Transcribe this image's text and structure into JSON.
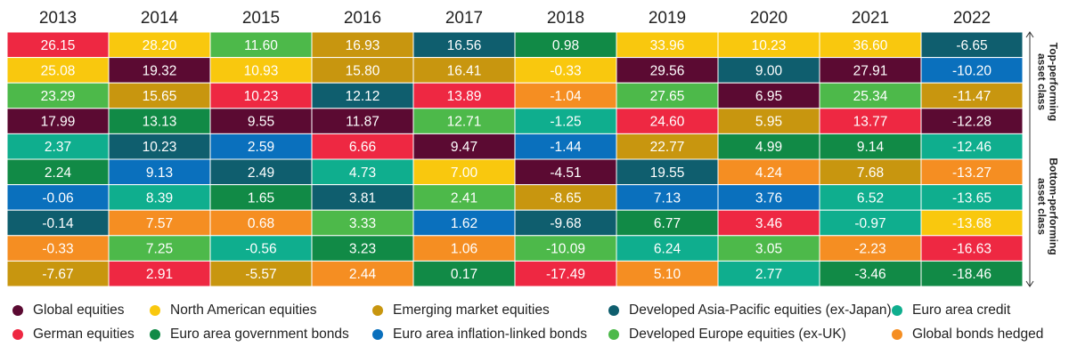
{
  "chart_data": {
    "type": "table",
    "title": "",
    "years": [
      "2013",
      "2014",
      "2015",
      "2016",
      "2017",
      "2018",
      "2019",
      "2020",
      "2021",
      "2022"
    ],
    "side_labels": {
      "top": [
        "Top-performing",
        "asset class"
      ],
      "bottom": [
        "Bottom-performing",
        "asset class"
      ]
    },
    "asset_classes": [
      {
        "key": "GE",
        "name": "Global equities",
        "color": "#5b0a32",
        "text_color": "#ffffff"
      },
      {
        "key": "NAE",
        "name": "North American equities",
        "color": "#f9c80e",
        "text_color": "#ffffff"
      },
      {
        "key": "EME",
        "name": "Emerging market equities",
        "color": "#c8960f",
        "text_color": "#ffffff"
      },
      {
        "key": "APE",
        "name": "Developed Asia-Pacific equities (ex-Japan)",
        "color": "#0f5e6e",
        "text_color": "#ffffff"
      },
      {
        "key": "EAC",
        "name": "Euro area credit",
        "color": "#0fae8e",
        "text_color": "#ffffff"
      },
      {
        "key": "GER",
        "name": "German equities",
        "color": "#ee2842",
        "text_color": "#ffffff"
      },
      {
        "key": "EAGB",
        "name": "Euro area government bonds",
        "color": "#118a46",
        "text_color": "#ffffff"
      },
      {
        "key": "EAIL",
        "name": "Euro area inflation-linked bonds",
        "color": "#0a70bd",
        "text_color": "#ffffff"
      },
      {
        "key": "DEE",
        "name": "Developed Europe equities (ex-UK)",
        "color": "#4db94a",
        "text_color": "#ffffff"
      },
      {
        "key": "GBH",
        "name": "Global bonds hedged",
        "color": "#f58e22",
        "text_color": "#ffffff"
      }
    ],
    "columns": [
      [
        [
          "GER",
          "26.15"
        ],
        [
          "NAE",
          "25.08"
        ],
        [
          "DEE",
          "23.29"
        ],
        [
          "GE",
          "17.99"
        ],
        [
          "EAC",
          "2.37"
        ],
        [
          "EAGB",
          "2.24"
        ],
        [
          "EAIL",
          "-0.06"
        ],
        [
          "APE",
          "-0.14"
        ],
        [
          "GBH",
          "-0.33"
        ],
        [
          "EME",
          "-7.67"
        ]
      ],
      [
        [
          "NAE",
          "28.20"
        ],
        [
          "GE",
          "19.32"
        ],
        [
          "EME",
          "15.65"
        ],
        [
          "EAGB",
          "13.13"
        ],
        [
          "APE",
          "10.23"
        ],
        [
          "EAIL",
          "9.13"
        ],
        [
          "EAC",
          "8.39"
        ],
        [
          "GBH",
          "7.57"
        ],
        [
          "DEE",
          "7.25"
        ],
        [
          "GER",
          "2.91"
        ]
      ],
      [
        [
          "DEE",
          "11.60"
        ],
        [
          "NAE",
          "10.93"
        ],
        [
          "GER",
          "10.23"
        ],
        [
          "GE",
          "9.55"
        ],
        [
          "EAIL",
          "2.59"
        ],
        [
          "APE",
          "2.49"
        ],
        [
          "EAGB",
          "1.65"
        ],
        [
          "GBH",
          "0.68"
        ],
        [
          "EAC",
          "-0.56"
        ],
        [
          "EME",
          "-5.57"
        ]
      ],
      [
        [
          "EME",
          "16.93"
        ],
        [
          "EME",
          "15.80"
        ],
        [
          "APE",
          "12.12"
        ],
        [
          "GE",
          "11.87"
        ],
        [
          "GER",
          "6.66"
        ],
        [
          "EAC",
          "4.73"
        ],
        [
          "APE",
          "3.81"
        ],
        [
          "DEE",
          "3.33"
        ],
        [
          "EAGB",
          "3.23"
        ],
        [
          "GBH",
          "2.44"
        ]
      ],
      [
        [
          "APE",
          "16.56"
        ],
        [
          "EME",
          "16.41"
        ],
        [
          "GER",
          "13.89"
        ],
        [
          "DEE",
          "12.71"
        ],
        [
          "GE",
          "9.47"
        ],
        [
          "NAE",
          "7.00"
        ],
        [
          "DEE",
          "2.41"
        ],
        [
          "EAIL",
          "1.62"
        ],
        [
          "GBH",
          "1.06"
        ],
        [
          "EAGB",
          "0.17"
        ]
      ],
      [
        [
          "EAGB",
          "0.98"
        ],
        [
          "NAE",
          "-0.33"
        ],
        [
          "GBH",
          "-1.04"
        ],
        [
          "EAC",
          "-1.25"
        ],
        [
          "EAIL",
          "-1.44"
        ],
        [
          "GE",
          "-4.51"
        ],
        [
          "EME",
          "-8.65"
        ],
        [
          "APE",
          "-9.68"
        ],
        [
          "DEE",
          "-10.09"
        ],
        [
          "GER",
          "-17.49"
        ]
      ],
      [
        [
          "NAE",
          "33.96"
        ],
        [
          "GE",
          "29.56"
        ],
        [
          "DEE",
          "27.65"
        ],
        [
          "GER",
          "24.60"
        ],
        [
          "EME",
          "22.77"
        ],
        [
          "APE",
          "19.55"
        ],
        [
          "EAIL",
          "7.13"
        ],
        [
          "EAGB",
          "6.77"
        ],
        [
          "EAC",
          "6.24"
        ],
        [
          "GBH",
          "5.10"
        ]
      ],
      [
        [
          "NAE",
          "10.23"
        ],
        [
          "APE",
          "9.00"
        ],
        [
          "GE",
          "6.95"
        ],
        [
          "EME",
          "5.95"
        ],
        [
          "EAGB",
          "4.99"
        ],
        [
          "GBH",
          "4.24"
        ],
        [
          "EAIL",
          "3.76"
        ],
        [
          "GER",
          "3.46"
        ],
        [
          "DEE",
          "3.05"
        ],
        [
          "EAC",
          "2.77"
        ]
      ],
      [
        [
          "NAE",
          "36.60"
        ],
        [
          "GE",
          "27.91"
        ],
        [
          "DEE",
          "25.34"
        ],
        [
          "GER",
          "13.77"
        ],
        [
          "EAGB",
          "9.14"
        ],
        [
          "EME",
          "7.68"
        ],
        [
          "EAC",
          "6.52"
        ],
        [
          "EAC",
          "-0.97"
        ],
        [
          "GBH",
          "-2.23"
        ],
        [
          "EAGB",
          "-3.46"
        ]
      ],
      [
        [
          "APE",
          "-6.65"
        ],
        [
          "EAIL",
          "-10.20"
        ],
        [
          "EME",
          "-11.47"
        ],
        [
          "GE",
          "-12.28"
        ],
        [
          "EAC",
          "-12.46"
        ],
        [
          "GBH",
          "-13.27"
        ],
        [
          "EAC",
          "-13.65"
        ],
        [
          "NAE",
          "-13.68"
        ],
        [
          "GER",
          "-16.63"
        ],
        [
          "EAGB",
          "-18.46"
        ]
      ]
    ],
    "legend_order": [
      [
        "GE",
        "NAE",
        "EME",
        "APE",
        "EAC"
      ],
      [
        "GER",
        "EAGB",
        "EAIL",
        "DEE",
        "GBH"
      ]
    ]
  }
}
